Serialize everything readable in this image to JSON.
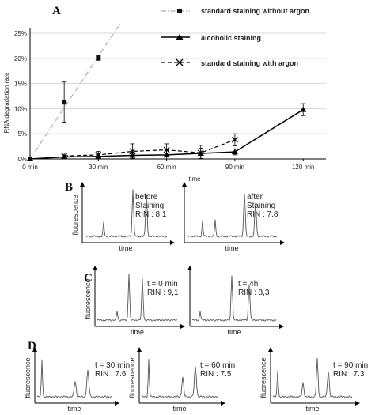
{
  "chart_data": [
    {
      "panel_label": "A",
      "type": "line",
      "xlabel": "time",
      "ylabel": "RNA degradation rate",
      "x_ticks": [
        "0 min",
        "30 min",
        "60 min",
        "90 min",
        "120 min"
      ],
      "y_ticks": [
        "0%",
        "5%",
        "10%",
        "15%",
        "20%",
        "25%"
      ],
      "xlim": [
        0,
        130
      ],
      "ylim": [
        0,
        25
      ],
      "legend": [
        "standard staining without argon",
        "alcoholic staining",
        "standard staining with argon"
      ],
      "legend_position": "top-right",
      "series": [
        {
          "name": "standard staining without argon",
          "style": "dash-dot",
          "color": "#bbbbbb",
          "x": [
            0,
            15,
            30
          ],
          "y": [
            0,
            11.3,
            20.1
          ],
          "err": [
            0,
            4.0,
            0.5
          ]
        },
        {
          "name": "alcoholic staining",
          "style": "solid",
          "color": "#000000",
          "x": [
            0,
            15,
            30,
            45,
            60,
            75,
            90,
            120
          ],
          "y": [
            0,
            0.4,
            0.5,
            0.7,
            0.8,
            1.1,
            1.4,
            9.8
          ],
          "err": [
            0,
            0.4,
            0.5,
            0.6,
            0.9,
            1.0,
            0.6,
            1.2
          ]
        },
        {
          "name": "standard staining with argon",
          "style": "dashed",
          "color": "#000000",
          "x": [
            15,
            30,
            45,
            60,
            75,
            90
          ],
          "y": [
            0.6,
            0.8,
            1.5,
            1.8,
            1.2,
            3.8
          ],
          "err": [
            0.6,
            0.7,
            1.5,
            1.2,
            1.5,
            1.2
          ]
        }
      ],
      "trend_line": {
        "slope_per_min": 0.68,
        "style": "dash-dot",
        "color": "#bbbbbb"
      }
    },
    {
      "panel_label": "B",
      "type": "line",
      "traces": [
        {
          "label_lines": [
            "before",
            "Staining",
            "RIN : 8.1"
          ],
          "ylabel": "fluorescence",
          "xlabel": "time"
        },
        {
          "label_lines": [
            "after",
            "Staining",
            "RIN : 7.8"
          ],
          "ylabel": "",
          "xlabel": "time"
        }
      ]
    },
    {
      "panel_label": "C",
      "type": "line",
      "traces": [
        {
          "label_lines": [
            "t = 0 min",
            "RIN : 9,1"
          ],
          "ylabel": "fluorescence",
          "xlabel": "time"
        },
        {
          "label_lines": [
            "t = 4h",
            "RIN : 8,3"
          ],
          "ylabel": "",
          "xlabel": "time"
        }
      ]
    },
    {
      "panel_label": "D",
      "type": "line",
      "traces": [
        {
          "label_lines": [
            "t = 30 min",
            "RIN : 7.6"
          ],
          "ylabel": "fluorescence",
          "xlabel": "time"
        },
        {
          "label_lines": [
            "t = 60 min",
            "RIN : 7.5"
          ],
          "ylabel": "fluorescence",
          "xlabel": "time"
        },
        {
          "label_lines": [
            "t = 90 min",
            "RIN : 7.3"
          ],
          "ylabel": "fluorescence",
          "xlabel": "time"
        }
      ]
    }
  ]
}
